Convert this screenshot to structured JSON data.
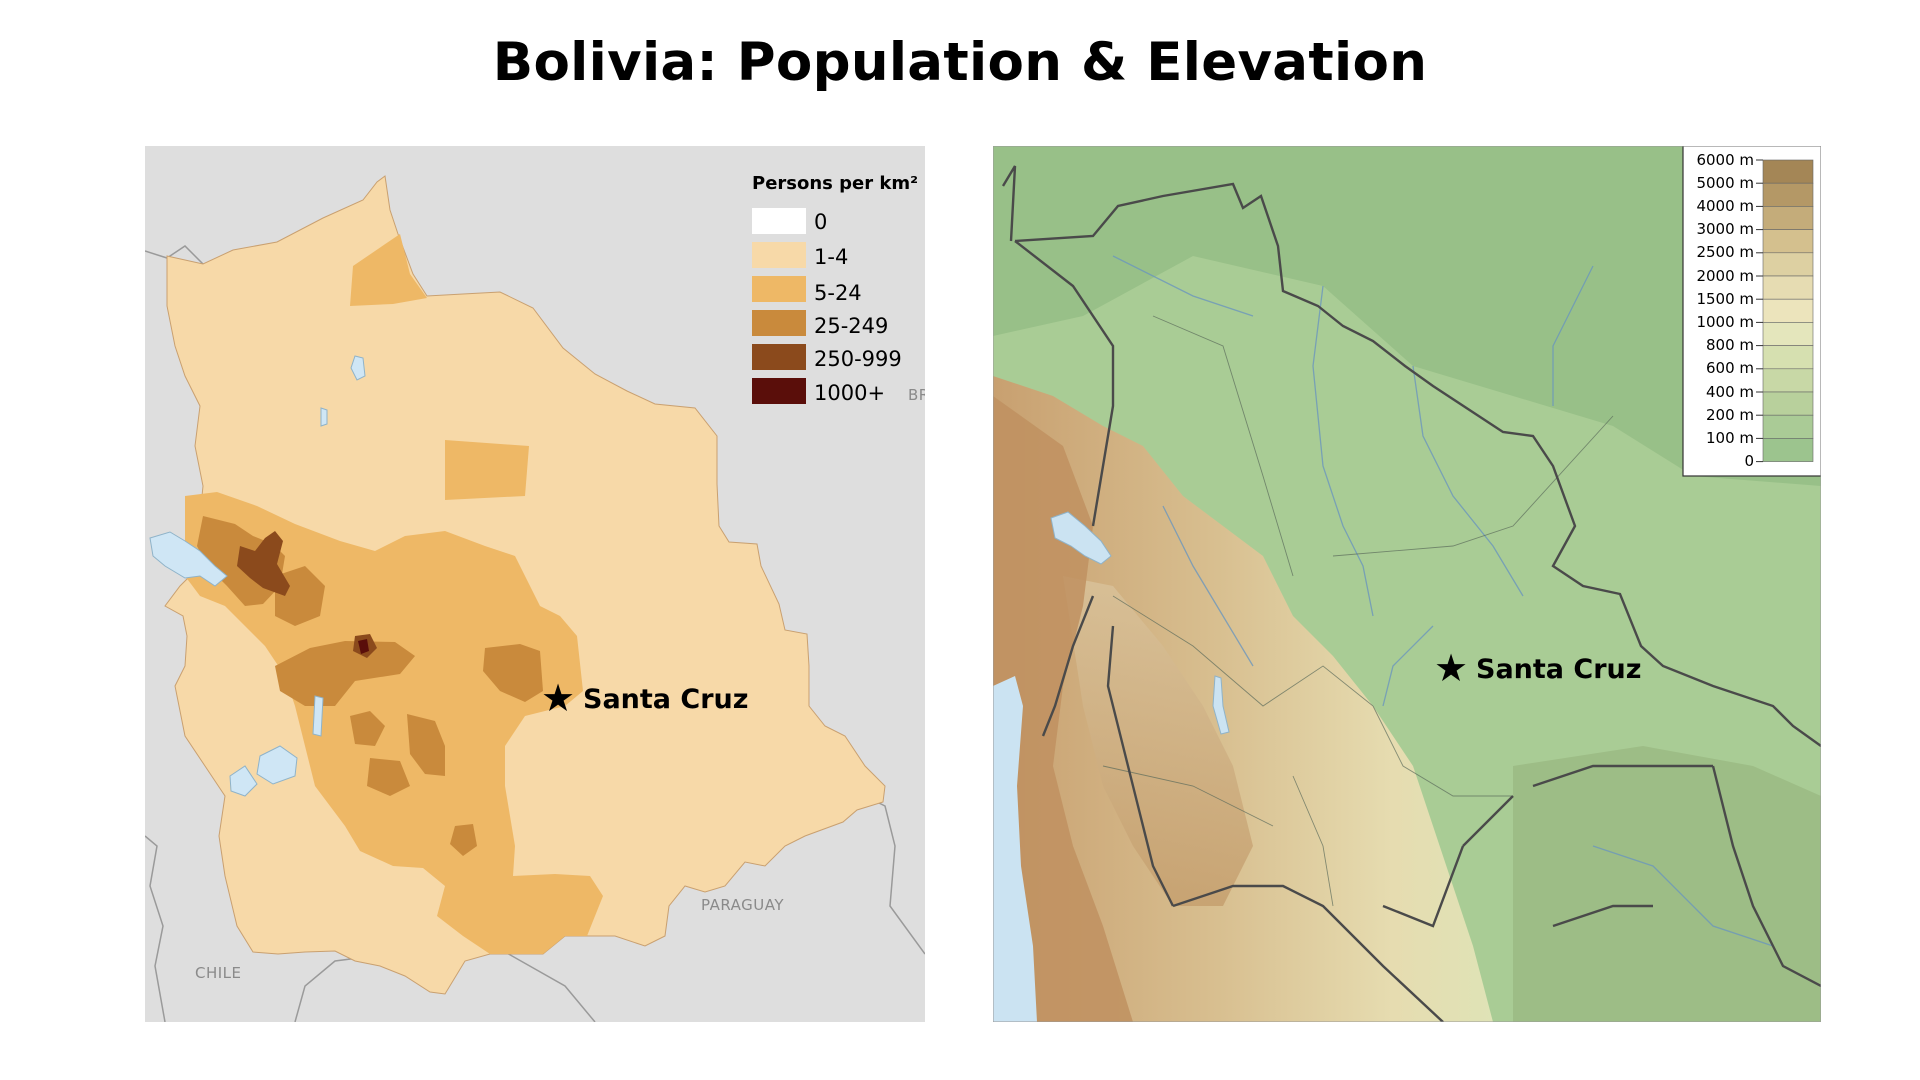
{
  "title": "Bolivia: Population & Elevation",
  "population_map": {
    "legend_title": "Persons per km²",
    "legend": [
      {
        "label": "0",
        "color": "#ffffff"
      },
      {
        "label": "1-4",
        "color": "#f7d9a8"
      },
      {
        "label": "5-24",
        "color": "#eeb866"
      },
      {
        "label": "25-249",
        "color": "#c98a3c"
      },
      {
        "label": "250-999",
        "color": "#8b4a1c"
      },
      {
        "label": "1000+",
        "color": "#5a0e0a"
      }
    ],
    "city_label": "Santa Cruz",
    "country_labels": {
      "chile": "CHILE",
      "paraguay": "PARAGUAY",
      "brazil_partial": "BR"
    },
    "colors": {
      "background": "#dedede",
      "water": "#cfe6f5",
      "border": "#8f8f8f"
    }
  },
  "elevation_map": {
    "legend": [
      {
        "label": "6000 m",
        "color": "#a48656"
      },
      {
        "label": "5000 m",
        "color": "#b49866"
      },
      {
        "label": "4000 m",
        "color": "#c4ac7a"
      },
      {
        "label": "3000 m",
        "color": "#d4c08e"
      },
      {
        "label": "2500 m",
        "color": "#ddd0a2"
      },
      {
        "label": "2000 m",
        "color": "#e6dcb2"
      },
      {
        "label": "1500 m",
        "color": "#ece4bc"
      },
      {
        "label": "1000 m",
        "color": "#e4e6bc"
      },
      {
        "label": "800 m",
        "color": "#d6e0b0"
      },
      {
        "label": "600 m",
        "color": "#c8d8a6"
      },
      {
        "label": "400 m",
        "color": "#b8d09c"
      },
      {
        "label": "200 m",
        "color": "#aacb96"
      },
      {
        "label": "100 m",
        "color": "#9cc48e"
      },
      {
        "label": "0",
        "color": "#acd0a6"
      }
    ],
    "city_label": "Santa Cruz",
    "colors": {
      "lowland": "#a9cc95",
      "andes": "#c9a874",
      "ocean": "#cbe3f2",
      "border": "#4a4a4a"
    }
  }
}
